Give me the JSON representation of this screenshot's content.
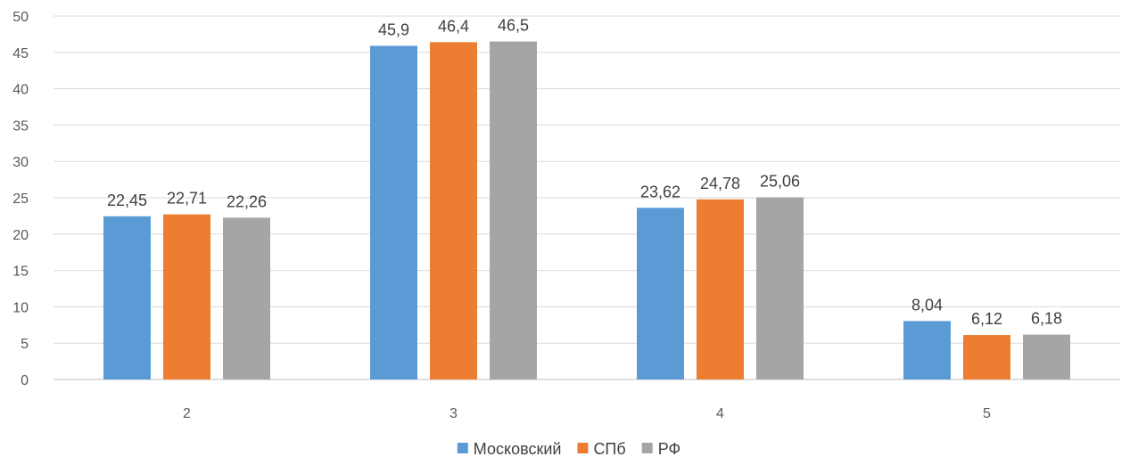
{
  "chart_data": {
    "type": "bar",
    "title": "",
    "xlabel": "",
    "ylabel": "",
    "categories": [
      "2",
      "3",
      "4",
      "5"
    ],
    "series": [
      {
        "name": "Московский",
        "color": "#5b9bd5",
        "values": [
          22.45,
          45.9,
          23.62,
          8.04
        ],
        "labels": [
          "22,45",
          "45,9",
          "23,62",
          "8,04"
        ]
      },
      {
        "name": "СПб",
        "color": "#ed7d31",
        "values": [
          22.71,
          46.4,
          24.78,
          6.12
        ],
        "labels": [
          "22,71",
          "46,4",
          "24,78",
          "6,12"
        ]
      },
      {
        "name": "РФ",
        "color": "#a5a5a5",
        "values": [
          22.26,
          46.5,
          25.06,
          6.18
        ],
        "labels": [
          "22,26",
          "46,5",
          "25,06",
          "6,18"
        ]
      }
    ],
    "ylim": [
      0,
      50
    ],
    "yticks": [
      "0",
      "5",
      "10",
      "15",
      "20",
      "25",
      "30",
      "35",
      "40",
      "45",
      "50"
    ],
    "grid": true,
    "legend": "bottom-center"
  }
}
